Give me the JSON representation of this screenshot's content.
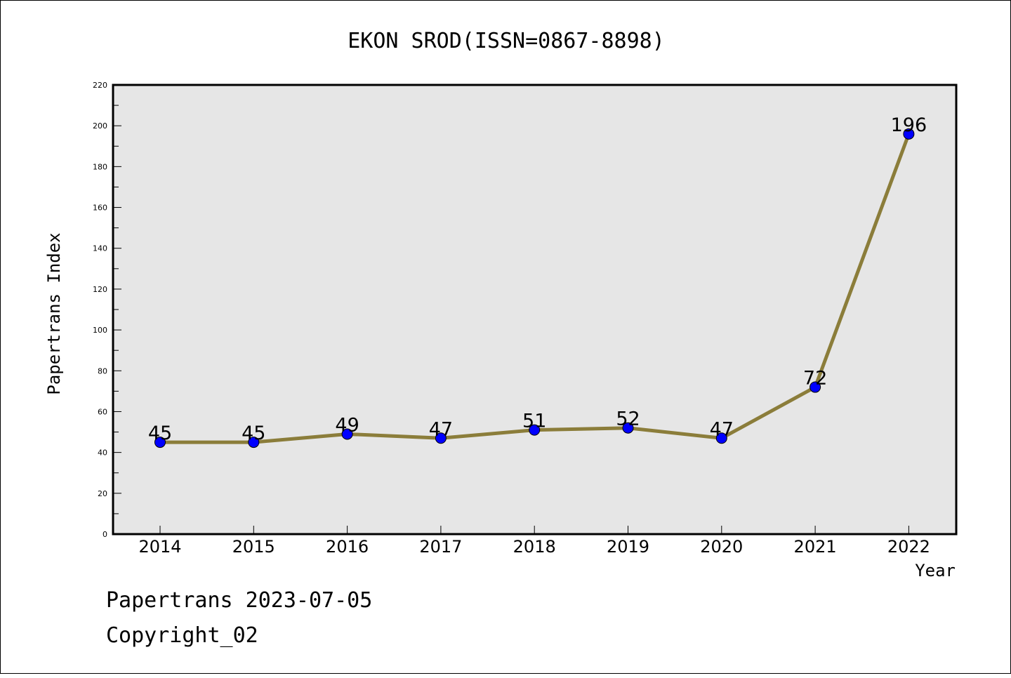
{
  "chart_data": {
    "type": "line",
    "title": "EKON SROD(ISSN=0867-8898)",
    "xlabel": "Year",
    "ylabel": "Papertrans Index",
    "categories": [
      "2014",
      "2015",
      "2016",
      "2017",
      "2018",
      "2019",
      "2020",
      "2021",
      "2022"
    ],
    "series": [
      {
        "values": [
          45,
          45,
          49,
          47,
          51,
          52,
          47,
          72,
          196
        ]
      }
    ],
    "ylim": [
      0,
      220
    ],
    "yticks": [
      0,
      20,
      40,
      60,
      80,
      100,
      120,
      140,
      160,
      180,
      200,
      220
    ],
    "grid": false,
    "data_labels": true,
    "colors": {
      "line": "#8b7d3a",
      "marker": "#0000ff",
      "plot_background": "#e6e6e6"
    }
  },
  "footer": {
    "line1": "Papertrans 2023-07-05",
    "line2": "Copyright_02"
  }
}
